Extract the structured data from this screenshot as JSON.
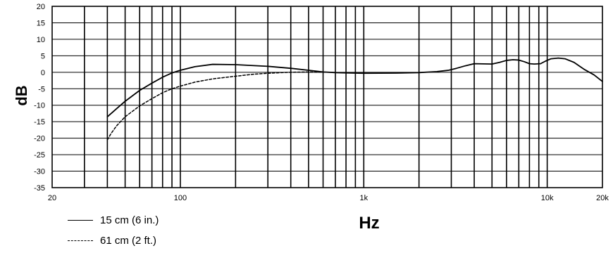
{
  "chart_data": {
    "type": "line",
    "title": "",
    "xlabel": "Hz",
    "ylabel": "dB",
    "xscale": "log",
    "xlim": [
      20,
      20000
    ],
    "ylim": [
      -35,
      20
    ],
    "yticks": [
      20,
      15,
      10,
      5,
      0,
      -5,
      -10,
      -15,
      -20,
      -25,
      -30,
      -35
    ],
    "xtick_labels": [
      {
        "value": 20,
        "label": "20"
      },
      {
        "value": 100,
        "label": "100"
      },
      {
        "value": 1000,
        "label": "1k"
      },
      {
        "value": 10000,
        "label": "10k"
      },
      {
        "value": 20000,
        "label": "20k"
      }
    ],
    "grid": true,
    "legend_position": "bottom-left",
    "series": [
      {
        "name": "15 cm  (6 in.)",
        "style": "solid",
        "color": "#000000",
        "points": [
          [
            40,
            -13.5
          ],
          [
            45,
            -11
          ],
          [
            50,
            -8.8
          ],
          [
            60,
            -5.5
          ],
          [
            70,
            -3.3
          ],
          [
            80,
            -1.5
          ],
          [
            90,
            -0.2
          ],
          [
            100,
            0.6
          ],
          [
            120,
            1.7
          ],
          [
            150,
            2.4
          ],
          [
            200,
            2.3
          ],
          [
            300,
            1.8
          ],
          [
            400,
            1.2
          ],
          [
            500,
            0.6
          ],
          [
            600,
            0.1
          ],
          [
            700,
            -0.1
          ],
          [
            800,
            -0.2
          ],
          [
            1000,
            -0.3
          ],
          [
            1500,
            -0.25
          ],
          [
            2000,
            -0.1
          ],
          [
            2500,
            0.2
          ],
          [
            2900,
            0.6
          ],
          [
            3200,
            1.2
          ],
          [
            3600,
            2.0
          ],
          [
            4000,
            2.6
          ],
          [
            5000,
            2.5
          ],
          [
            5500,
            3.0
          ],
          [
            6000,
            3.6
          ],
          [
            6500,
            3.8
          ],
          [
            7000,
            3.7
          ],
          [
            7500,
            3.2
          ],
          [
            8000,
            2.6
          ],
          [
            8500,
            2.5
          ],
          [
            9200,
            2.6
          ],
          [
            9800,
            3.4
          ],
          [
            10500,
            4.1
          ],
          [
            11500,
            4.3
          ],
          [
            12500,
            4.1
          ],
          [
            14000,
            3.0
          ],
          [
            16000,
            0.8
          ],
          [
            18000,
            -0.8
          ],
          [
            20000,
            -2.8
          ]
        ]
      },
      {
        "name": "61 cm  (2 ft.)",
        "style": "dashed",
        "color": "#000000",
        "points": [
          [
            40,
            -20.5
          ],
          [
            42,
            -18.5
          ],
          [
            45,
            -16.2
          ],
          [
            50,
            -13.5
          ],
          [
            60,
            -10.2
          ],
          [
            70,
            -8.0
          ],
          [
            80,
            -6.2
          ],
          [
            90,
            -5.0
          ],
          [
            100,
            -4.2
          ],
          [
            120,
            -3.0
          ],
          [
            150,
            -2.0
          ],
          [
            200,
            -1.2
          ],
          [
            250,
            -0.6
          ],
          [
            300,
            -0.3
          ],
          [
            400,
            0.0
          ],
          [
            500,
            0.1
          ],
          [
            600,
            0.0
          ]
        ]
      }
    ]
  }
}
